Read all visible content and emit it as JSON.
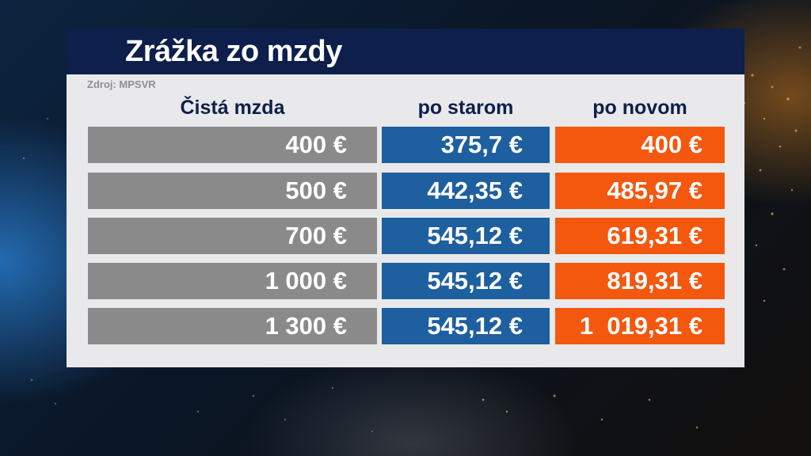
{
  "title": "Zrážka zo mzdy",
  "source": "Zdroj: MPSVR",
  "columns": [
    "Čistá mzda",
    "po starom",
    "po novom"
  ],
  "rows": [
    [
      "400 €",
      "375,7 €",
      "400 €"
    ],
    [
      "500 €",
      "442,35 €",
      "485,97 €"
    ],
    [
      "700 €",
      "545,12 €",
      "619,31 €"
    ],
    [
      "1 000 €",
      "545,12 €",
      "819,31 €"
    ],
    [
      "1 300 €",
      "545,12 €",
      "1  019,31 €"
    ]
  ],
  "colors": {
    "title_bar": "#0d1f4a",
    "col1_fill": "#8a8a8a",
    "col2_fill": "#1e5fa0",
    "col3_fill": "#f4570e"
  }
}
